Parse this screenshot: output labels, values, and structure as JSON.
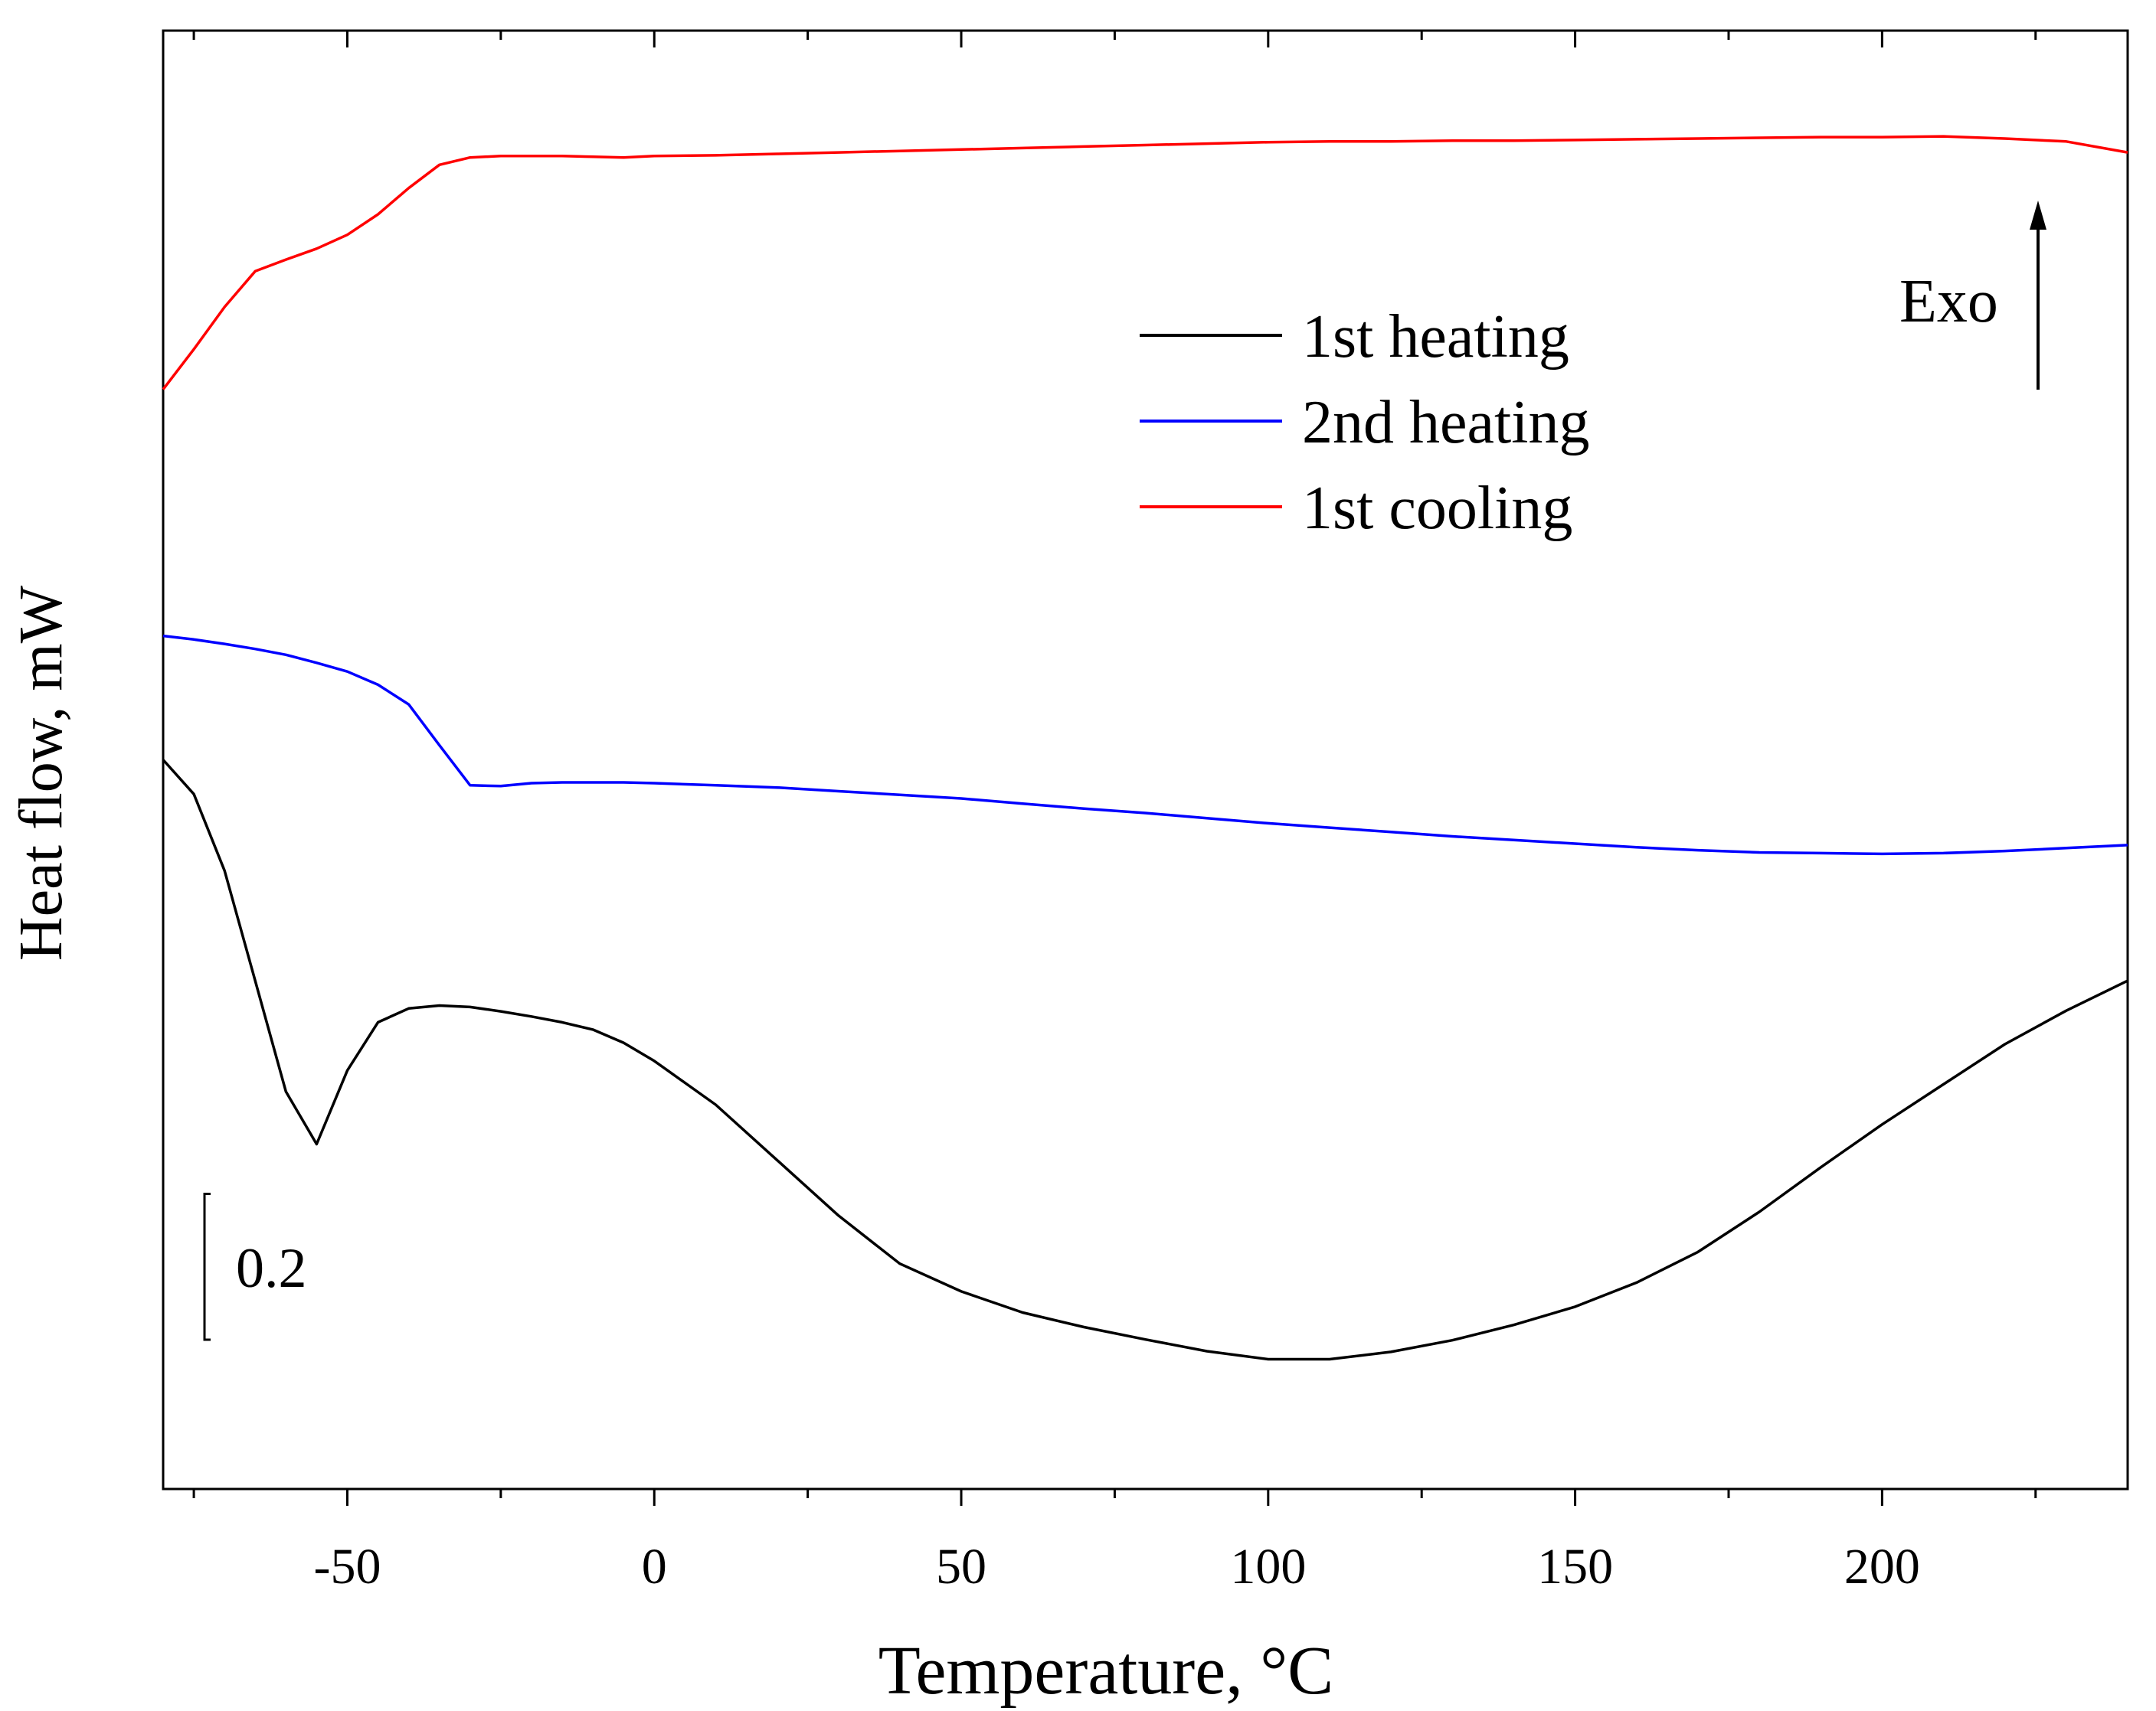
{
  "chart_data": {
    "type": "line",
    "x_label": "Temperature, °C",
    "y_label": "Heat flow, mW",
    "annotation": "Exo",
    "scale_bar": 0.2,
    "xlim": [
      -80,
      240
    ],
    "xticks": [
      -50,
      0,
      50,
      100,
      150,
      200
    ],
    "xminor_ticks": [
      -75,
      -25,
      25,
      75,
      125,
      175,
      225
    ],
    "ylim": [
      0,
      2.0
    ],
    "legend": "upper right",
    "x": [
      -80,
      -75,
      -70,
      -65,
      -60,
      -55,
      -50,
      -45,
      -40,
      -35,
      -30,
      -25,
      -20,
      -15,
      -10,
      -5,
      0,
      10,
      20,
      30,
      40,
      50,
      60,
      70,
      80,
      90,
      100,
      110,
      120,
      130,
      140,
      150,
      160,
      170,
      180,
      190,
      200,
      210,
      220,
      230,
      240
    ],
    "series": [
      {
        "name": "1st heating",
        "color": "#000000",
        "values": [
          1.0,
          0.953,
          0.848,
          0.697,
          0.545,
          0.473,
          0.574,
          0.64,
          0.659,
          0.663,
          0.661,
          0.655,
          0.648,
          0.64,
          0.63,
          0.612,
          0.587,
          0.527,
          0.451,
          0.375,
          0.309,
          0.271,
          0.242,
          0.222,
          0.205,
          0.189,
          0.178,
          0.178,
          0.188,
          0.204,
          0.225,
          0.25,
          0.283,
          0.325,
          0.38,
          0.441,
          0.5,
          0.555,
          0.61,
          0.656,
          0.697
        ]
      },
      {
        "name": "2nd heating",
        "color": "#0000ff",
        "values": [
          1.17,
          1.165,
          1.159,
          1.152,
          1.144,
          1.133,
          1.121,
          1.103,
          1.076,
          1.02,
          0.965,
          0.964,
          0.968,
          0.969,
          0.969,
          0.969,
          0.968,
          0.965,
          0.962,
          0.957,
          0.952,
          0.947,
          0.94,
          0.933,
          0.927,
          0.92,
          0.913,
          0.907,
          0.901,
          0.895,
          0.89,
          0.885,
          0.88,
          0.876,
          0.873,
          0.872,
          0.871,
          0.872,
          0.875,
          0.879,
          0.883
        ]
      },
      {
        "name": "1st cooling",
        "color": "#ff0000",
        "values": [
          1.508,
          1.563,
          1.621,
          1.67,
          1.686,
          1.701,
          1.72,
          1.748,
          1.784,
          1.816,
          1.826,
          1.828,
          1.828,
          1.828,
          1.827,
          1.826,
          1.828,
          1.829,
          1.831,
          1.833,
          1.835,
          1.837,
          1.839,
          1.841,
          1.843,
          1.845,
          1.847,
          1.848,
          1.848,
          1.849,
          1.849,
          1.85,
          1.851,
          1.852,
          1.853,
          1.854,
          1.854,
          1.855,
          1.852,
          1.848,
          1.833
        ]
      }
    ]
  }
}
